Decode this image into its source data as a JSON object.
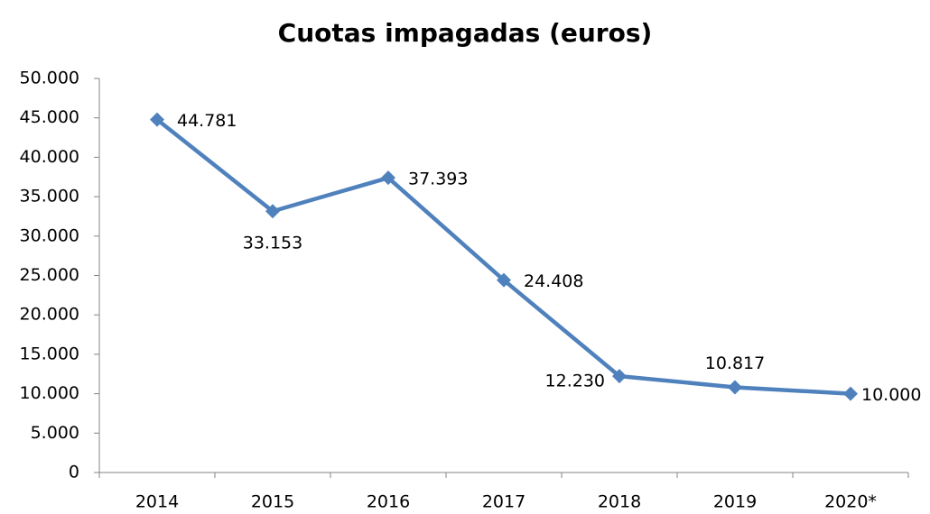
{
  "chart_data": {
    "type": "line",
    "title": "Cuotas impagadas (euros)",
    "categories": [
      "2014",
      "2015",
      "2016",
      "2017",
      "2018",
      "2019",
      "2020*"
    ],
    "series": [
      {
        "color": "#4f81bd",
        "values": [
          44781,
          33153,
          37393,
          24408,
          12230,
          10817,
          10000
        ],
        "value_labels": [
          "44.781",
          "33.153",
          "37.393",
          "24.408",
          "12.230",
          "10.817",
          "10.000"
        ]
      }
    ],
    "ylim": [
      0,
      50000
    ],
    "yticks": [
      0,
      {
        "value": 5000,
        "label": "5.000"
      },
      {
        "value": 10000,
        "label": "10.000"
      },
      {
        "value": 15000,
        "label": "15.000"
      },
      {
        "value": 20000,
        "label": "20.000"
      },
      {
        "value": 25000,
        "label": "25.000"
      },
      {
        "value": 30000,
        "label": "30.000"
      },
      {
        "value": 35000,
        "label": "35.000"
      },
      {
        "value": 40000,
        "label": "40.000"
      },
      {
        "value": 45000,
        "label": "45.000"
      },
      {
        "value": 50000,
        "label": "50.000"
      }
    ],
    "grid": false
  }
}
